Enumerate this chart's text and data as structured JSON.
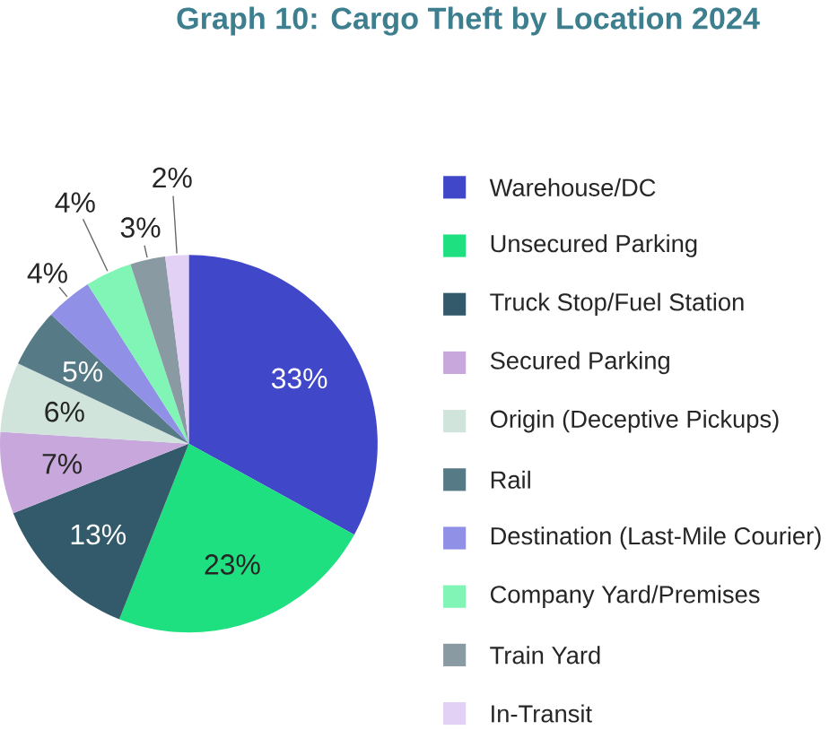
{
  "chart_data": {
    "type": "pie",
    "title": "Graph 10: Cargo Theft by Location 2024",
    "categories": [
      "Warehouse/DC",
      "Unsecured Parking",
      "Truck Stop/Fuel Station",
      "Secured Parking",
      "Origin (Deceptive Pickups)",
      "Rail",
      "Destination (Last-Mile Courier)",
      "Company Yard/Premises",
      "Train Yard",
      "In-Transit"
    ],
    "values": [
      33,
      23,
      13,
      7,
      6,
      5,
      4,
      4,
      3,
      2
    ],
    "value_labels": [
      "33%",
      "23%",
      "13%",
      "7%",
      "6%",
      "5%",
      "4%",
      "4%",
      "3%",
      "2%"
    ],
    "colors": [
      "#4047c8",
      "#1ee080",
      "#335a6b",
      "#c8a8dc",
      "#d0e4dc",
      "#577a87",
      "#9090e6",
      "#80f5b5",
      "#8a9aa3",
      "#e2d0f5"
    ],
    "data_labels": true,
    "legend": "right"
  }
}
